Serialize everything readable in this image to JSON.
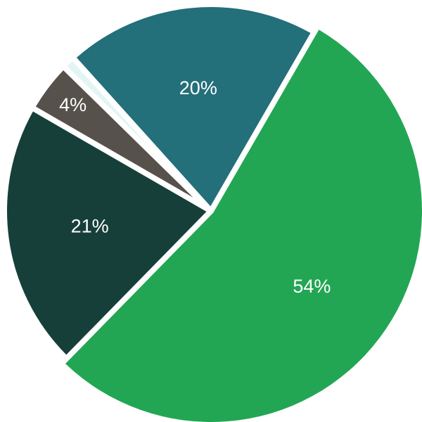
{
  "chart_data": {
    "type": "pie",
    "title": "",
    "legend": "none",
    "start_angle_deg": 30,
    "direction": "clockwise",
    "slices": [
      {
        "value": 54,
        "label": "54%",
        "color": "#22a653"
      },
      {
        "value": 21,
        "label": "21%",
        "color": "#173f39"
      },
      {
        "value": 4,
        "label": "4%",
        "color": "#56514b"
      },
      {
        "value": 1,
        "label": "",
        "color": "#e2f4f4"
      },
      {
        "value": 20,
        "label": "20%",
        "color": "#236f7a"
      }
    ]
  }
}
